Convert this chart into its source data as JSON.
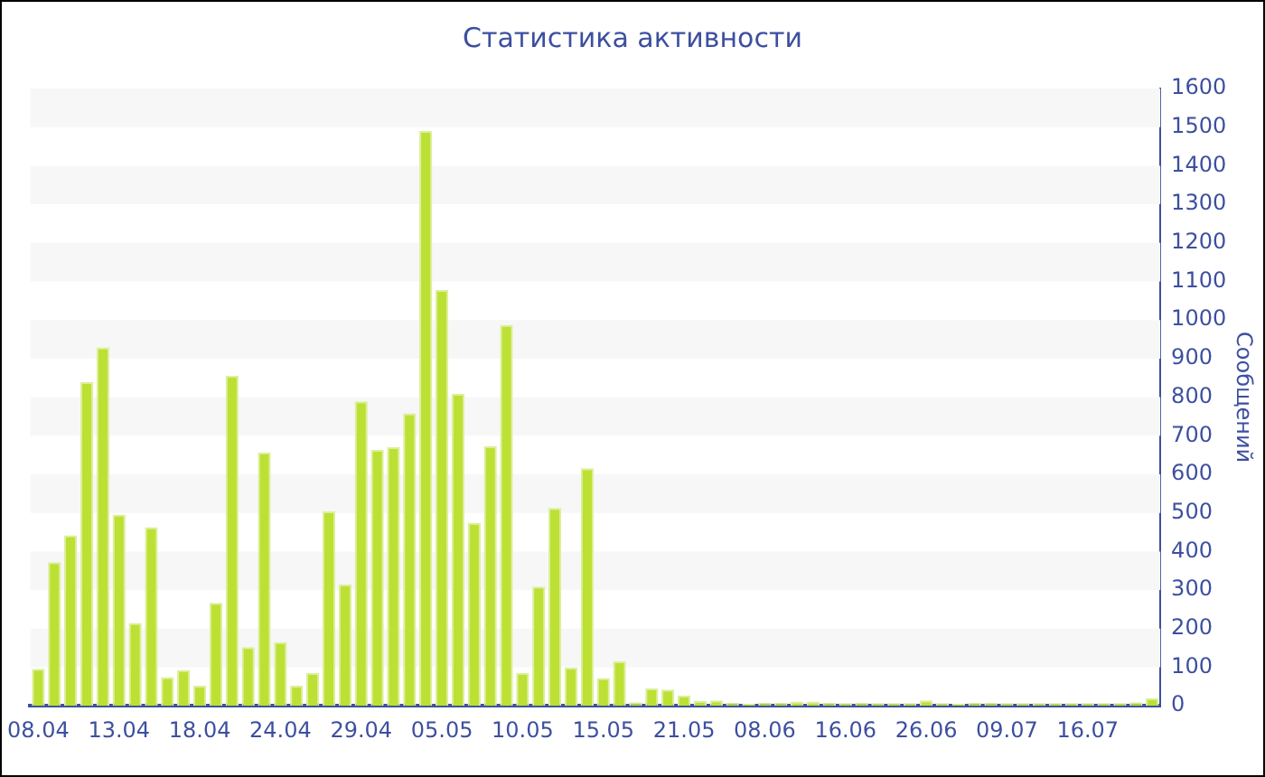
{
  "chart_data": {
    "type": "bar",
    "title": "Статистика активности",
    "ylabel": "Сообщений",
    "categories": [
      "08.04",
      null,
      null,
      null,
      null,
      "13.04",
      null,
      null,
      null,
      null,
      "18.04",
      null,
      null,
      null,
      null,
      "24.04",
      null,
      null,
      null,
      null,
      "29.04",
      null,
      null,
      null,
      null,
      "05.05",
      null,
      null,
      null,
      null,
      "10.05",
      null,
      null,
      null,
      null,
      "15.05",
      null,
      null,
      null,
      null,
      "21.05",
      null,
      null,
      null,
      null,
      "08.06",
      null,
      null,
      null,
      null,
      "16.06",
      null,
      null,
      null,
      null,
      "26.06",
      null,
      null,
      null,
      null,
      "09.07",
      null,
      null,
      null,
      null,
      "16.07",
      null,
      null,
      null,
      null
    ],
    "values": [
      96,
      372,
      442,
      839,
      929,
      496,
      215,
      463,
      74,
      93,
      52,
      267,
      855,
      152,
      657,
      165,
      52,
      85,
      504,
      314,
      789,
      663,
      670,
      758,
      1490,
      1078,
      809,
      474,
      673,
      987,
      85,
      309,
      513,
      99,
      616,
      72,
      115,
      9,
      45,
      42,
      27,
      13,
      14,
      8,
      6,
      8,
      8,
      11,
      11,
      8,
      7,
      8,
      7,
      7,
      7,
      14,
      7,
      6,
      8,
      8,
      7,
      7,
      7,
      7,
      7,
      7,
      7,
      7,
      9,
      20
    ],
    "color": "#bde034",
    "ylim": [
      0,
      1600
    ],
    "yticks": [
      0,
      100,
      200,
      300,
      400,
      500,
      600,
      700,
      800,
      900,
      1000,
      1100,
      1200,
      1300,
      1400,
      1500,
      1600
    ],
    "bands": [
      {
        "axis": "y",
        "from": 1500,
        "to": 1600,
        "color": "#f7f7f7"
      },
      {
        "axis": "y",
        "from": 1300,
        "to": 1400,
        "color": "#f7f7f7"
      },
      {
        "axis": "y",
        "from": 1100,
        "to": 1200,
        "color": "#f7f7f7"
      },
      {
        "axis": "y",
        "from": 900,
        "to": 1000,
        "color": "#f7f7f7"
      },
      {
        "axis": "y",
        "from": 700,
        "to": 800,
        "color": "#f7f7f7"
      },
      {
        "axis": "y",
        "from": 500,
        "to": 600,
        "color": "#f7f7f7"
      },
      {
        "axis": "y",
        "from": 300,
        "to": 400,
        "color": "#f7f7f7"
      },
      {
        "axis": "y",
        "from": 100,
        "to": 200,
        "color": "#f7f7f7"
      }
    ]
  }
}
